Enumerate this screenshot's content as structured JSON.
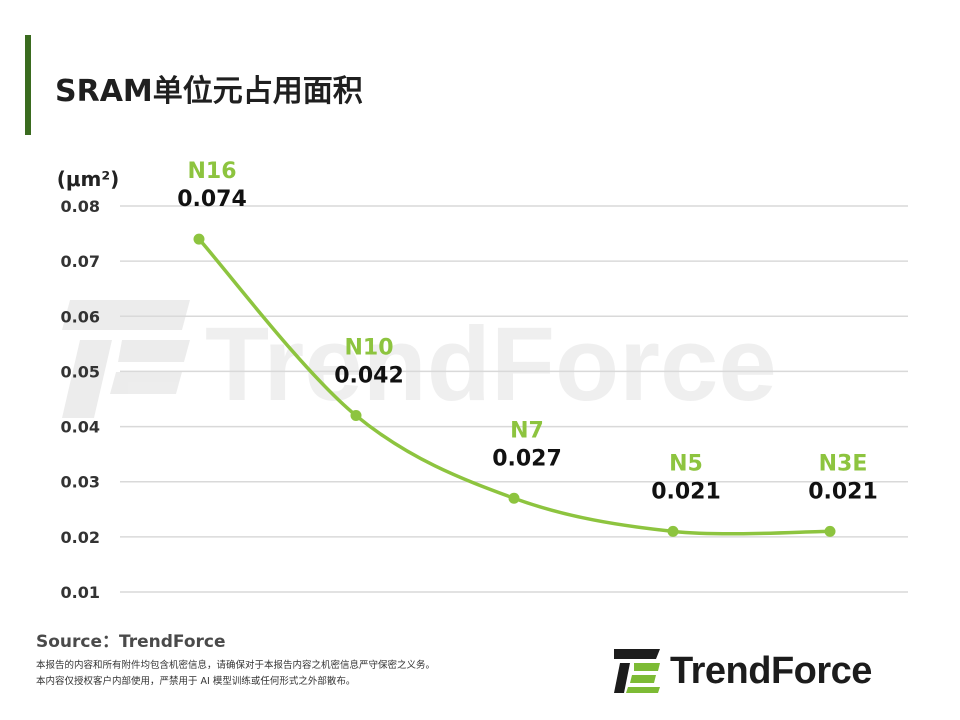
{
  "header": {
    "title": "SRAM单位元占用面积"
  },
  "chart_data": {
    "type": "line",
    "title": "SRAM单位元占用面积",
    "unit_label": "(μm²)",
    "categories": [
      "N16",
      "N10",
      "N7",
      "N5",
      "N3E"
    ],
    "values": [
      0.074,
      0.042,
      0.027,
      0.021,
      0.021
    ],
    "value_labels": [
      "0.074",
      "0.042",
      "0.027",
      "0.021",
      "0.021"
    ],
    "y_ticks": [
      "0.01",
      "0.02",
      "0.03",
      "0.04",
      "0.05",
      "0.06",
      "0.07",
      "0.08"
    ],
    "ylim": [
      0.01,
      0.08
    ],
    "grid": true,
    "line_color": "#8dc43f",
    "node_label_color": "#8dc43f",
    "watermark": "TrendForce"
  },
  "footer": {
    "source": "Source：TrendForce",
    "disclaimer_line1": "本报告的内容和所有附件均包含机密信息，请确保对于本报告内容之机密信息严守保密之义务。",
    "disclaimer_line2": "本内容仅授权客户内部使用，严禁用于 AI 模型训练或任何形式之外部散布。",
    "logo_text": "TrendForce"
  }
}
